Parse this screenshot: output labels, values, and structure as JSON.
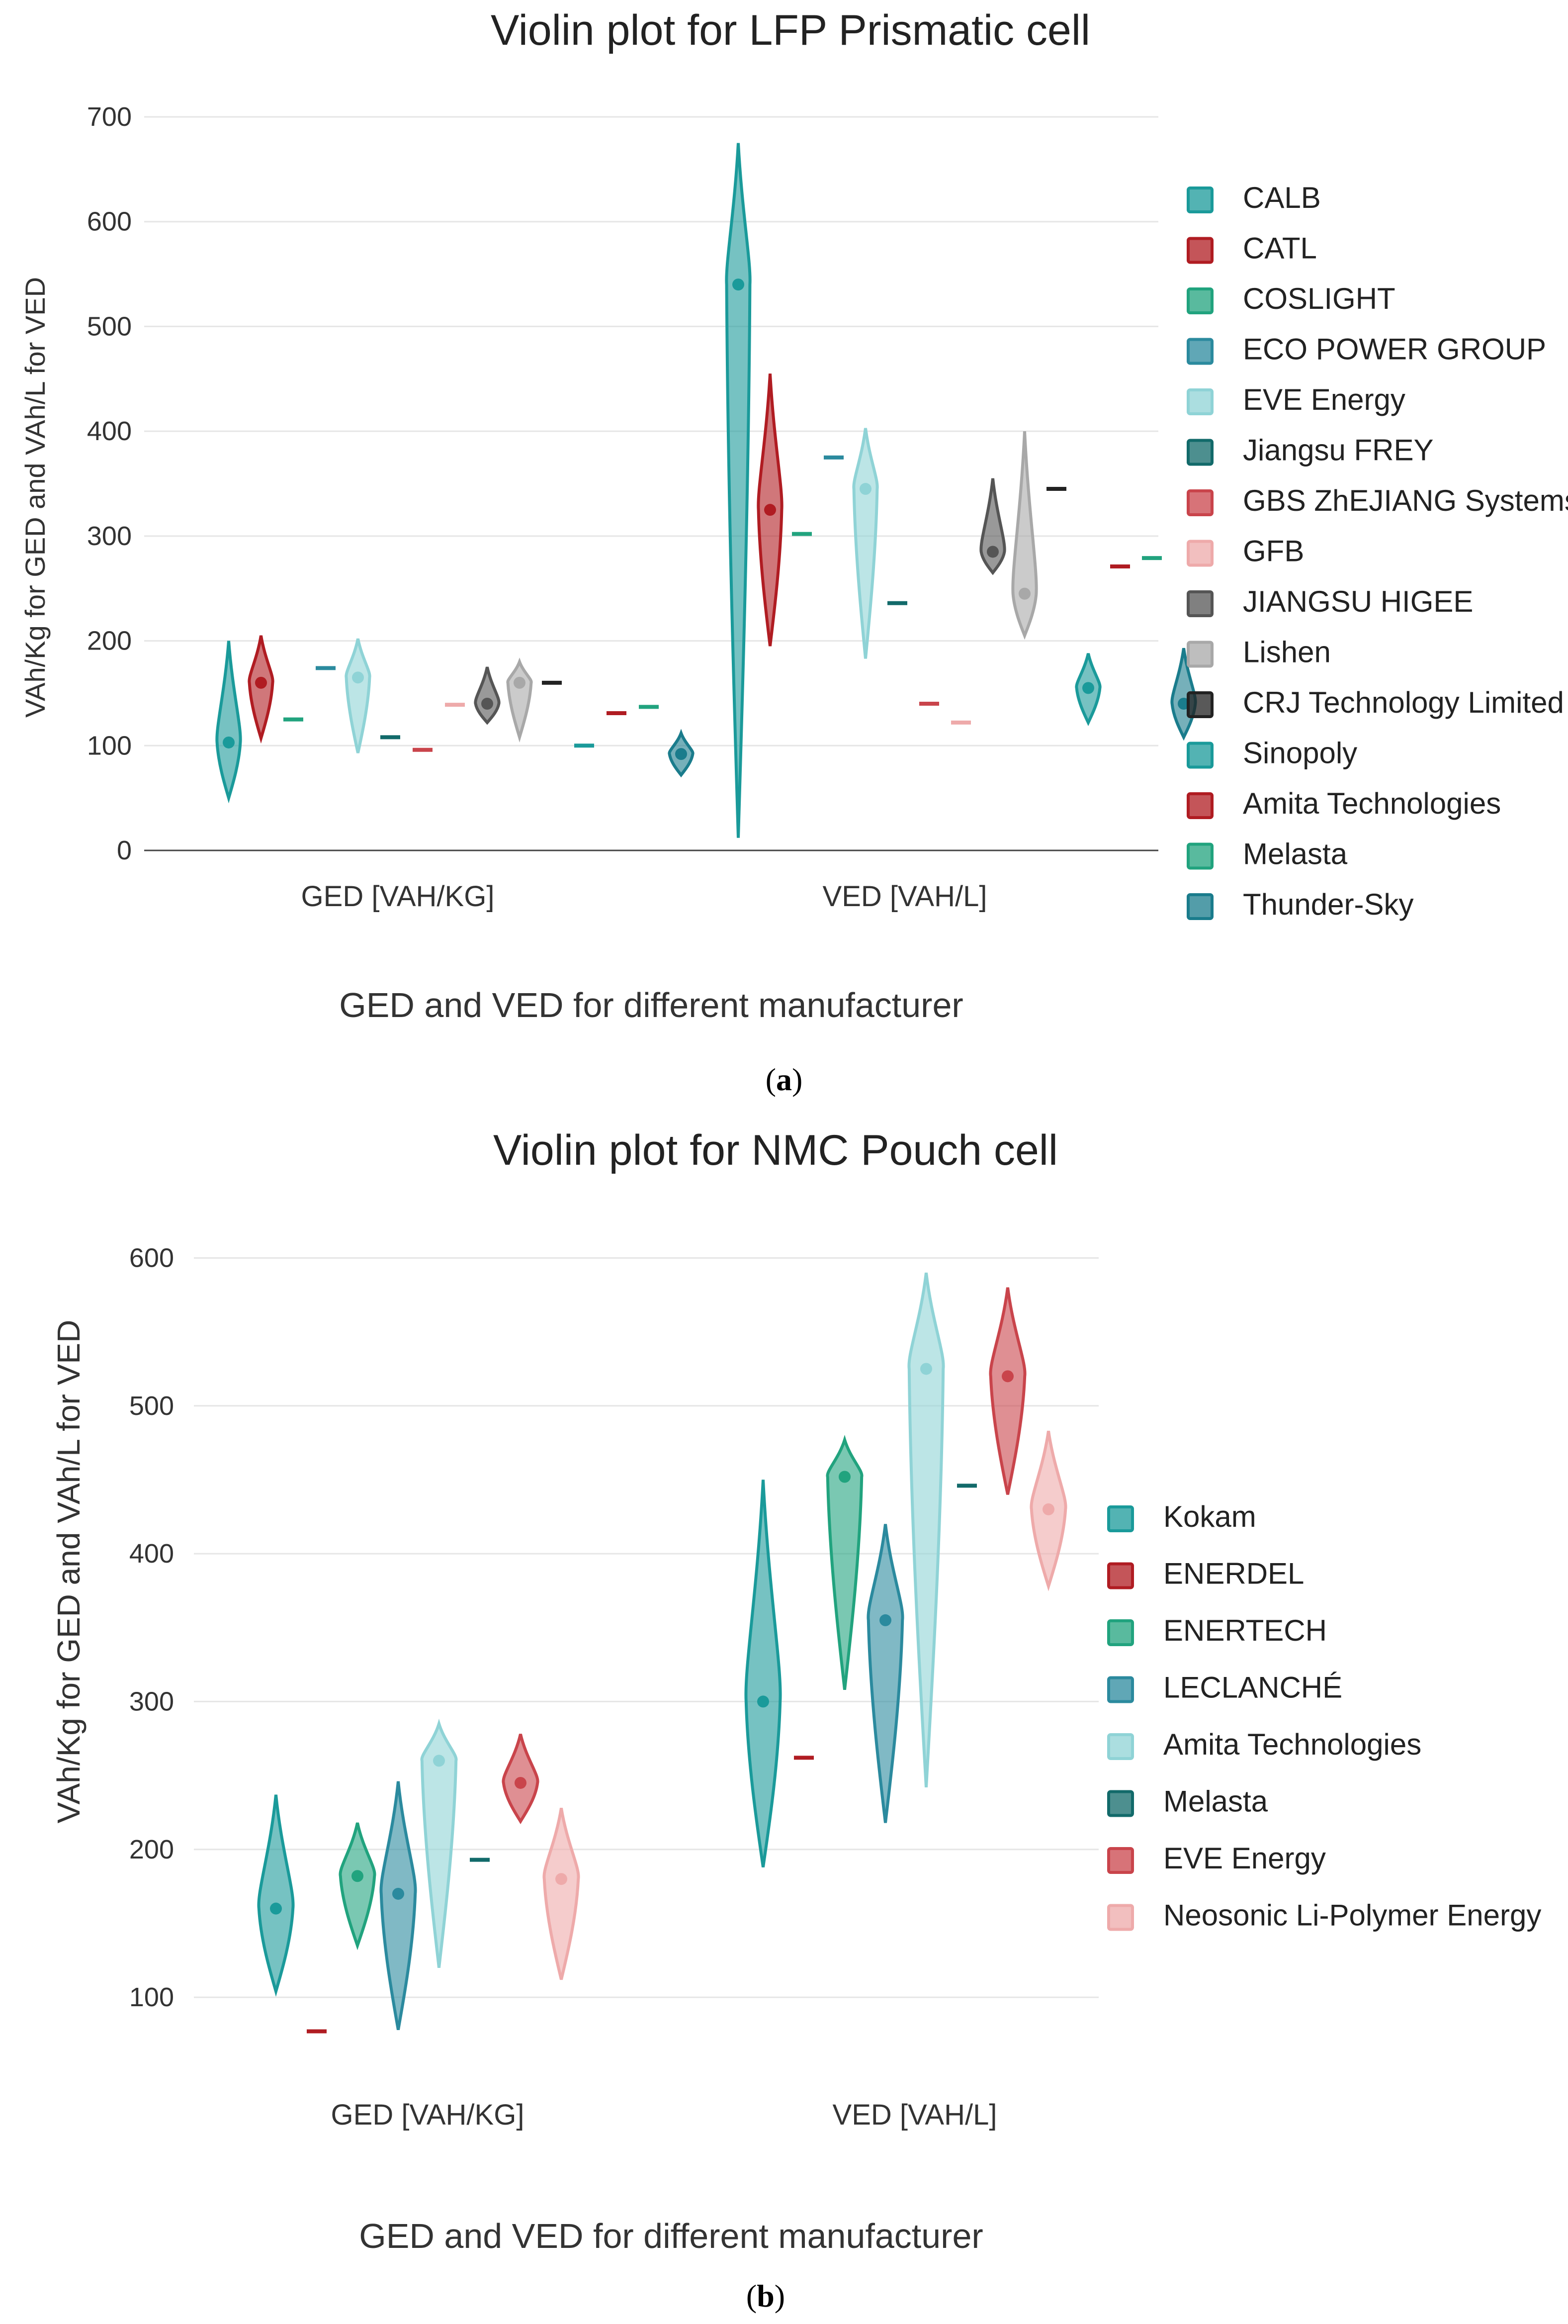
{
  "chart_data": [
    {
      "type": "violin",
      "title": "Violin plot for LFP Prismatic cell",
      "xlabel": "GED and VED for different manufacturer",
      "ylabel": "VAh/Kg for GED and VAh/L for VED",
      "categories": [
        "GED [VAH/KG]",
        "VED [VAH/L]"
      ],
      "yticks": [
        "0",
        "100",
        "200",
        "300",
        "400",
        "500",
        "600",
        "700"
      ],
      "ylim": [
        0,
        700
      ],
      "caption": "(a)",
      "caption_open": "(",
      "caption_letter": "a",
      "caption_close": ")",
      "legend_position": "right",
      "series": [
        {
          "name": "CALB",
          "color": "#1a9a9a",
          "ged": [
            50,
            103,
            200
          ],
          "ved": [
            12,
            540,
            675
          ]
        },
        {
          "name": "CATL",
          "color": "#b01c22",
          "ged": [
            107,
            160,
            205
          ],
          "ved": [
            195,
            325,
            455
          ]
        },
        {
          "name": "COSLIGHT",
          "color": "#21a37e",
          "ged": [
            125,
            125,
            125
          ],
          "ved": [
            302,
            302,
            302
          ]
        },
        {
          "name": "ECO POWER GROUP",
          "color": "#2b8a9e",
          "ged": [
            174,
            174,
            174
          ],
          "ved": [
            375,
            375,
            375
          ]
        },
        {
          "name": "EVE Energy",
          "color": "#8fd3d6",
          "ged": [
            93,
            165,
            202
          ],
          "ved": [
            183,
            345,
            403
          ]
        },
        {
          "name": "Jiangsu FREY",
          "color": "#126a6a",
          "ged": [
            108,
            108,
            108
          ],
          "ved": [
            236,
            236,
            236
          ]
        },
        {
          "name": "GBS ZhEJIANG Systems",
          "color": "#c9444b",
          "ged": [
            96,
            96,
            96
          ],
          "ved": [
            140,
            140,
            140
          ]
        },
        {
          "name": "GFB",
          "color": "#eeaaaa",
          "ged": [
            139,
            139,
            139
          ],
          "ved": [
            122,
            122,
            122
          ]
        },
        {
          "name": "JIANGSU HIGEE",
          "color": "#555555",
          "ged": [
            122,
            140,
            175
          ],
          "ved": [
            265,
            285,
            355
          ]
        },
        {
          "name": "Lishen",
          "color": "#a8a8a8",
          "ged": [
            108,
            160,
            180
          ],
          "ved": [
            205,
            245,
            400
          ]
        },
        {
          "name": "CRJ Technology Limited",
          "color": "#222222",
          "ged": [
            160,
            160,
            160
          ],
          "ved": [
            345,
            345,
            345
          ]
        },
        {
          "name": "Sinopoly",
          "color": "#1a9a9a",
          "ged": [
            100,
            100,
            100
          ],
          "ved": [
            122,
            155,
            188
          ]
        },
        {
          "name": "Amita Technologies",
          "color": "#b01c22",
          "ged": [
            131,
            131,
            131
          ],
          "ved": [
            271,
            271,
            271
          ]
        },
        {
          "name": "Melasta",
          "color": "#21a37e",
          "ged": [
            137,
            137,
            137
          ],
          "ved": [
            279,
            279,
            279
          ]
        },
        {
          "name": "Thunder-Sky",
          "color": "#1a7c8c",
          "ged": [
            72,
            92,
            112
          ],
          "ved": [
            108,
            140,
            193
          ]
        }
      ]
    },
    {
      "type": "violin",
      "title": "Violin plot for NMC Pouch cell",
      "xlabel": "GED and VED for different manufacturer",
      "ylabel": "VAh/Kg for GED and VAh/L for VED",
      "categories": [
        "GED [VAH/KG]",
        "VED [VAH/L]"
      ],
      "yticks": [
        "100",
        "200",
        "300",
        "400",
        "500",
        "600"
      ],
      "ylim": [
        60,
        620
      ],
      "caption": "(b)",
      "caption_open": "(",
      "caption_letter": "b",
      "caption_close": ")",
      "legend_position": "right",
      "series": [
        {
          "name": "Kokam",
          "color": "#1a9a9a",
          "ged": [
            104,
            160,
            237
          ],
          "ved": [
            188,
            300,
            450
          ]
        },
        {
          "name": "ENERDEL",
          "color": "#b01c22",
          "ged": [
            77,
            77,
            77
          ],
          "ved": [
            262,
            262,
            262
          ]
        },
        {
          "name": "ENERTECH",
          "color": "#21a37e",
          "ged": [
            135,
            182,
            218
          ],
          "ved": [
            308,
            452,
            477
          ]
        },
        {
          "name": "LECLANCHÉ",
          "color": "#2b8a9e",
          "ged": [
            78,
            170,
            246
          ],
          "ved": [
            218,
            355,
            420
          ]
        },
        {
          "name": "Amita Technologies",
          "color": "#8fd3d6",
          "ged": [
            120,
            260,
            285
          ],
          "ved": [
            242,
            525,
            590
          ]
        },
        {
          "name": "Melasta",
          "color": "#126a6a",
          "ged": [
            193,
            193,
            193
          ],
          "ved": [
            446,
            446,
            446
          ]
        },
        {
          "name": "EVE Energy",
          "color": "#c9444b",
          "ged": [
            219,
            245,
            278
          ],
          "ved": [
            440,
            520,
            580
          ]
        },
        {
          "name": "Neosonic Li-Polymer Energy",
          "color": "#eeaaaa",
          "ged": [
            112,
            180,
            228
          ],
          "ved": [
            378,
            430,
            483
          ]
        }
      ]
    }
  ]
}
